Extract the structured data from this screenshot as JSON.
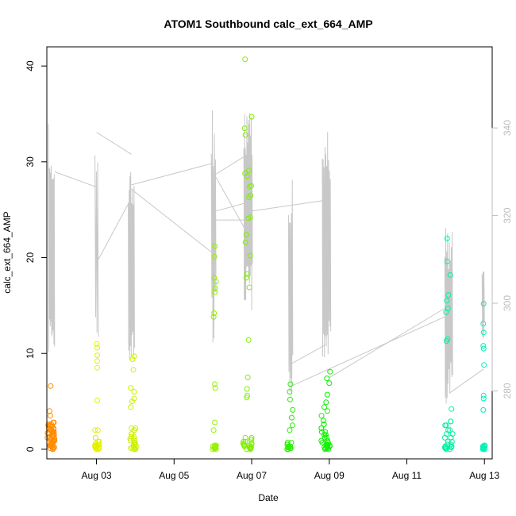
{
  "chart_data": {
    "type": "scatter",
    "title": "ATOM1 Southbound calc_ext_664_AMP",
    "xlabel": "Date",
    "ylabel": "calc_ext_664_AMP",
    "x_unit": "days since Aug 01",
    "xlim": [
      1.72,
      13.2
    ],
    "ylim": [
      -1.0,
      42.0
    ],
    "y2lim": [
      264.5,
      358.5
    ],
    "x_ticks": [
      {
        "value": 3,
        "label": "Aug 03"
      },
      {
        "value": 5,
        "label": "Aug 05"
      },
      {
        "value": 7,
        "label": "Aug 07"
      },
      {
        "value": 9,
        "label": "Aug 09"
      },
      {
        "value": 11,
        "label": "Aug 11"
      },
      {
        "value": 13,
        "label": "Aug 13"
      }
    ],
    "y_ticks": [
      0,
      10,
      20,
      30,
      40
    ],
    "y2_ticks": [
      280,
      300,
      320,
      340
    ],
    "grid": false,
    "legend": "none",
    "series": [
      {
        "kind": "points",
        "axis": "left",
        "groups": [
          {
            "color": "#ff8c00",
            "x_center": 1.82,
            "x_spread": 0.1,
            "base_values": [
              0.0,
              0.1,
              0.2,
              0.3,
              0.4,
              0.5,
              0.6,
              0.7,
              0.8,
              0.9,
              1.0,
              1.1,
              1.2,
              1.3,
              1.4,
              1.5,
              1.6,
              1.7,
              1.8,
              1.9,
              2.0,
              2.1,
              2.2,
              2.4,
              2.5,
              2.6,
              2.8
            ],
            "high_values": [
              3.5,
              4.0,
              6.6
            ],
            "high_x": [
              1.81,
              1.79,
              1.82
            ]
          },
          {
            "color": "#e3f000",
            "x_center": 3.02,
            "x_spread": 0.06,
            "base_values": [
              0.0,
              0.1,
              0.2,
              0.3,
              0.4,
              0.5,
              0.6,
              0.8,
              1.2,
              2.0
            ],
            "high_values": [
              5.1,
              8.5,
              9.2,
              9.8,
              10.6,
              11.0
            ],
            "high_x": [
              3.02,
              3.02,
              3.02,
              3.02,
              3.02,
              3.01
            ]
          },
          {
            "color": "#cdf000",
            "x_center": 3.95,
            "x_spread": 0.09,
            "base_values": [
              0.0,
              0.1,
              0.2,
              0.3,
              0.5,
              0.7,
              0.9,
              1.1,
              1.3,
              1.6,
              2.0,
              2.2
            ],
            "high_values": [
              4.4,
              5.0,
              5.3,
              6.0,
              6.4,
              8.3,
              9.4,
              9.7
            ],
            "high_x": [
              3.88,
              3.92,
              3.97,
              3.97,
              3.88,
              3.95,
              3.93,
              3.97
            ]
          },
          {
            "color": "#95f000",
            "x_center": 6.04,
            "x_spread": 0.05,
            "base_values": [
              0.0,
              0.1,
              0.2,
              0.3,
              0.4
            ],
            "high_values": [
              2.0,
              2.8,
              6.4,
              6.8,
              13.8,
              14.2,
              16.4,
              16.8,
              17.5,
              17.9,
              20.1,
              21.2
            ],
            "high_x": [
              6.02,
              6.05,
              6.06,
              6.05,
              6.02,
              6.03,
              6.05,
              6.06,
              6.08,
              6.03,
              6.04,
              6.05
            ]
          },
          {
            "color": "#7ff000",
            "x_center": 6.89,
            "x_spread": 0.12,
            "base_values": [
              0.0,
              0.1,
              0.2,
              0.3,
              0.4,
              0.5,
              0.6,
              0.8,
              1.0,
              1.2
            ],
            "high_values": [
              5.4,
              5.6,
              6.3,
              7.5,
              11.4,
              16.9,
              17.9,
              18.3,
              20.2,
              21.6,
              22.4,
              24.1,
              24.2,
              26.3,
              26.5,
              27.4,
              27.5,
              28.5,
              28.8,
              29.1,
              32.8,
              33.5,
              34.7,
              40.7
            ],
            "high_x": [
              6.87,
              6.89,
              6.88,
              6.9,
              6.92,
              6.94,
              6.86,
              6.88,
              6.96,
              6.84,
              6.86,
              6.91,
              6.96,
              6.93,
              6.97,
              6.95,
              6.99,
              6.89,
              6.83,
              6.93,
              6.84,
              6.82,
              7.0,
              6.83
            ]
          },
          {
            "color": "#27f000",
            "x_center": 8.0,
            "x_spread": 0.09,
            "base_values": [
              0.0,
              0.1,
              0.2,
              0.3,
              0.5,
              0.7
            ],
            "high_values": [
              2.0,
              2.5,
              3.3,
              4.1,
              5.2,
              6.0,
              6.8
            ],
            "high_x": [
              7.98,
              8.05,
              8.03,
              8.06,
              7.99,
              7.98,
              8.0
            ]
          },
          {
            "color": "#10f000",
            "x_center": 8.9,
            "x_spread": 0.12,
            "base_values": [
              0.0,
              0.1,
              0.2,
              0.3,
              0.4,
              0.5,
              0.7,
              0.9,
              1.2,
              1.5,
              1.8,
              2.2,
              2.6
            ],
            "high_values": [
              3.0,
              3.5,
              4.0,
              4.4,
              4.9,
              5.7,
              6.9,
              7.4,
              8.1
            ],
            "high_x": [
              8.85,
              8.8,
              8.95,
              8.87,
              8.92,
              8.95,
              9.0,
              8.94,
              9.02
            ]
          },
          {
            "color": "#00f0a0",
            "x_center": 12.08,
            "x_spread": 0.1,
            "base_values": [
              0.0,
              0.1,
              0.2,
              0.3,
              0.5,
              0.8,
              1.2,
              1.6,
              2.0,
              2.5,
              2.9
            ],
            "high_values": [
              4.2,
              11.3,
              11.5,
              14.3,
              14.7,
              15.5,
              16.1,
              18.2,
              19.6,
              22.0
            ],
            "high_x": [
              12.15,
              12.02,
              12.05,
              12.01,
              12.06,
              12.03,
              12.07,
              12.12,
              12.04,
              12.04
            ]
          },
          {
            "color": "#00f0b5",
            "x_center": 12.98,
            "x_spread": 0.04,
            "base_values": [
              0.0,
              0.1,
              0.2,
              0.3,
              0.4
            ],
            "high_values": [
              4.1,
              5.3,
              5.6,
              8.8,
              10.5,
              10.8,
              12.2,
              13.1,
              15.2
            ],
            "high_x": [
              12.97,
              12.98,
              12.98,
              12.99,
              12.98,
              12.97,
              12.98,
              12.97,
              12.98
            ]
          }
        ]
      },
      {
        "kind": "line",
        "axis": "right",
        "color": "#c8c8c8",
        "segments": [
          {
            "x_start": 1.76,
            "x_end": 1.92,
            "low": 286,
            "high": 341,
            "n": 18
          },
          {
            "x_start": 2.96,
            "x_end": 3.05,
            "low": 290,
            "high": 339,
            "n": 6
          },
          {
            "x_start": 3.82,
            "x_end": 3.98,
            "low": 285,
            "high": 334,
            "n": 16
          },
          {
            "x_start": 5.96,
            "x_end": 6.08,
            "low": 290,
            "high": 345,
            "n": 10
          },
          {
            "x_start": 6.8,
            "x_end": 7.02,
            "low": 298,
            "high": 344,
            "n": 24
          },
          {
            "x_start": 7.95,
            "x_end": 8.06,
            "low": 274,
            "high": 331,
            "n": 10
          },
          {
            "x_start": 8.82,
            "x_end": 9.04,
            "low": 285,
            "high": 342,
            "n": 20
          },
          {
            "x_start": 11.98,
            "x_end": 12.18,
            "low": 277,
            "high": 318,
            "n": 18
          },
          {
            "x_start": 12.94,
            "x_end": 13.0,
            "low": 292,
            "high": 309,
            "n": 6
          }
        ],
        "connectors": [
          [
            [
              1.92,
              330
            ],
            [
              3.0,
              326.5
            ]
          ],
          [
            [
              3.0,
              339
            ],
            [
              3.9,
              334
            ]
          ],
          [
            [
              3.05,
              310
            ],
            [
              3.9,
              324
            ]
          ],
          [
            [
              3.9,
              327
            ],
            [
              6.02,
              332
            ]
          ],
          [
            [
              3.9,
              326
            ],
            [
              6.06,
              311
            ]
          ],
          [
            [
              6.06,
              321
            ],
            [
              6.9,
              323
            ]
          ],
          [
            [
              6.08,
              319
            ],
            [
              6.9,
              319
            ]
          ],
          [
            [
              6.9,
              334
            ],
            [
              6.0,
              329
            ]
          ],
          [
            [
              6.95,
              315
            ],
            [
              6.0,
              330
            ]
          ],
          [
            [
              6.98,
              321
            ],
            [
              8.9,
              323.5
            ]
          ],
          [
            [
              7.98,
              286
            ],
            [
              8.9,
              290.5
            ]
          ],
          [
            [
              8.0,
              281
            ],
            [
              12.0,
              297
            ]
          ],
          [
            [
              9.0,
              283
            ],
            [
              12.1,
              299.5
            ]
          ],
          [
            [
              12.1,
              279.5
            ],
            [
              12.98,
              285
            ]
          ]
        ]
      }
    ]
  }
}
